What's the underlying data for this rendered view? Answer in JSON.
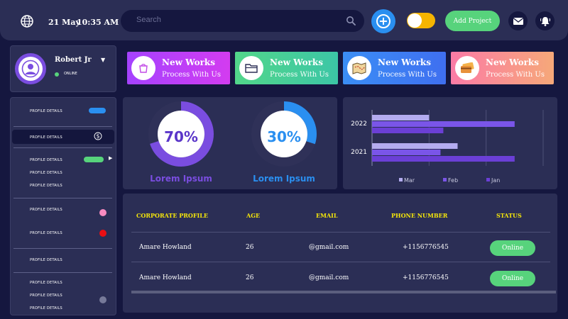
{
  "header": {
    "date": "21 May",
    "time": "10:35 AM",
    "search_placeholder": "Search",
    "add_project_label": "Add Project",
    "icons": {
      "globe": "globe-icon",
      "search": "search-icon",
      "add": "plus-circle-icon",
      "mail": "mail-icon",
      "bell": "bell-icon"
    }
  },
  "profile": {
    "name": "Robert Jr",
    "status": "ONLINE"
  },
  "work_cards": [
    {
      "title": "New Works",
      "subtitle": "Process With Us",
      "icon": "shopping-bag-icon",
      "color_from": "#a542ff",
      "color_to": "#d33cf0"
    },
    {
      "title": "New Works",
      "subtitle": "Process With Us",
      "icon": "folder-icon",
      "color_from": "#52d68a",
      "color_to": "#3cc6a6"
    },
    {
      "title": "New Works",
      "subtitle": "Process With Us",
      "icon": "map-icon",
      "color_from": "#3b8ef5",
      "color_to": "#3f6ff0"
    },
    {
      "title": "New Works",
      "subtitle": "Process With Us",
      "icon": "credit-card-icon",
      "color_from": "#fb7ba6",
      "color_to": "#f6a879"
    }
  ],
  "sidebar": {
    "items": [
      {
        "label": "PROFILE DETAILS"
      },
      {
        "label": "PROFILE DETAILS"
      },
      {
        "label": "PROFILE DETAILS"
      },
      {
        "label": "PROFILE DETAILS"
      },
      {
        "label": "PROFILE DETAILS"
      },
      {
        "label": "PROFILE DETAILS"
      },
      {
        "label": "PROFILE DETAILS"
      },
      {
        "label": "PROFILE DETAILS"
      },
      {
        "label": "PROFILE DETAILS"
      },
      {
        "label": "PROFILE DETAILS"
      },
      {
        "label": "PROFILE DETAILS"
      }
    ]
  },
  "donuts": [
    {
      "value_text": "70%",
      "fraction": 0.7,
      "label": "Lorem Ipsum",
      "color": "#7a4de0",
      "text_color": "#5a35c9",
      "label_color": "#7a4de0"
    },
    {
      "value_text": "30%",
      "fraction": 0.3,
      "label": "Lorem Ipsum",
      "color": "#2a8ff0",
      "text_color": "#2a8ff0",
      "label_color": "#2a8ff0"
    }
  ],
  "chart_data": {
    "type": "bar",
    "orientation": "horizontal",
    "categories": [
      "2022",
      "2021"
    ],
    "series": [
      {
        "name": "Mar",
        "values": [
          0.4,
          0.6
        ],
        "color": "#b4acf0"
      },
      {
        "name": "Feb",
        "values": [
          1.0,
          0.48
        ],
        "color": "#7a55e8"
      },
      {
        "name": "Jan",
        "values": [
          0.5,
          1.0
        ],
        "color": "#6b3fd6"
      }
    ],
    "xlim": [
      0,
      1.2
    ],
    "grid": true,
    "legend": "bottom"
  },
  "table": {
    "headers": [
      "CORPORATE PROFILE",
      "AGE",
      "EMAIL",
      "PHONE NUMBER",
      "STATUS"
    ],
    "rows": [
      {
        "name": "Amare Howland",
        "age": "26",
        "email": "@gmail.com",
        "phone": "+1156776545",
        "status": "Online"
      },
      {
        "name": "Amare Howland",
        "age": "26",
        "email": "@gmail.com",
        "phone": "+1156776545",
        "status": "Online"
      }
    ]
  }
}
